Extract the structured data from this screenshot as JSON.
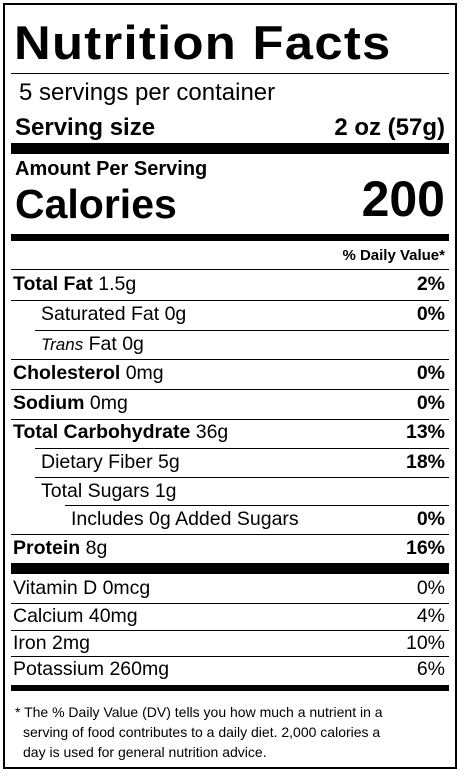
{
  "header": {
    "title": "Nutrition Facts",
    "servings_per_container": "5 servings per container",
    "serving_size_label": "Serving size",
    "serving_size_value": "2 oz (57g)"
  },
  "calories": {
    "amount_per_serving": "Amount Per Serving",
    "label": "Calories",
    "value": "200"
  },
  "daily_value_header": "% Daily Value*",
  "nutrients": [
    {
      "name": "Total Fat",
      "amount": " 1.5g",
      "dv": "2%"
    },
    {
      "name": "Saturated Fat",
      "amount": " 0g",
      "dv": "0%"
    },
    {
      "name": "Trans",
      "amount": " Fat 0g",
      "dv": ""
    },
    {
      "name": "Cholesterol",
      "amount": " 0mg",
      "dv": "0%"
    },
    {
      "name": "Sodium",
      "amount": " 0mg",
      "dv": "0%"
    },
    {
      "name": "Total Carbohydrate",
      "amount": " 36g",
      "dv": "13%"
    },
    {
      "name": "Dietary Fiber",
      "amount": " 5g",
      "dv": "18%"
    },
    {
      "name": "Total Sugars",
      "amount": " 1g",
      "dv": ""
    },
    {
      "name": "Includes 0g Added Sugars",
      "amount": "",
      "dv": "0%"
    },
    {
      "name": "Protein",
      "amount": " 8g",
      "dv": "16%"
    }
  ],
  "vitamins": [
    {
      "name": "Vitamin D 0mcg",
      "dv": "0%"
    },
    {
      "name": "Calcium 40mg",
      "dv": "4%"
    },
    {
      "name": "Iron 2mg",
      "dv": "10%"
    },
    {
      "name": "Potassium 260mg",
      "dv": "6%"
    }
  ],
  "footnote": {
    "line1": "* The % Daily Value (DV) tells you how much a nutrient in a",
    "line2": "serving of food contributes to a daily diet. 2,000 calories a",
    "line3": "day is used for general nutrition advice."
  }
}
